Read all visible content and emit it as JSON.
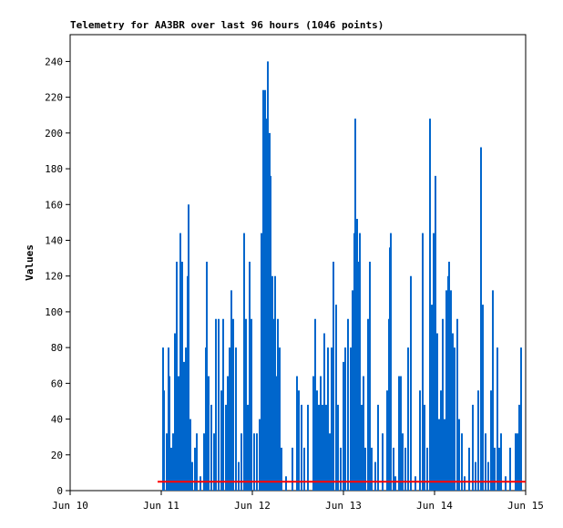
{
  "chart_data": {
    "type": "spike",
    "title": "Telemetry for AA3BR over last 96 hours (1046 points)",
    "y_label": "Values",
    "xlim": [
      0,
      5
    ],
    "xticks": [
      {
        "value": 0,
        "label": "Jun 10"
      },
      {
        "value": 1,
        "label": "Jun 11"
      },
      {
        "value": 2,
        "label": "Jun 12"
      },
      {
        "value": 3,
        "label": "Jun 13"
      },
      {
        "value": 4,
        "label": "Jun 14"
      },
      {
        "value": 5,
        "label": "Jun 15"
      }
    ],
    "ylim": [
      0,
      255
    ],
    "yticks": [
      0,
      20,
      40,
      60,
      80,
      100,
      120,
      140,
      160,
      180,
      200,
      220,
      240
    ],
    "series": [
      {
        "color": "#0066cc",
        "x": [
          1.02,
          1.03,
          1.06,
          1.08,
          1.09,
          1.11,
          1.13,
          1.15,
          1.17,
          1.19,
          1.21,
          1.23,
          1.25,
          1.27,
          1.29,
          1.3,
          1.32,
          1.34,
          1.37,
          1.39,
          1.43,
          1.47,
          1.49,
          1.5,
          1.52,
          1.55,
          1.58,
          1.6,
          1.63,
          1.66,
          1.68,
          1.71,
          1.73,
          1.75,
          1.77,
          1.79,
          1.82,
          1.85,
          1.88,
          1.91,
          1.93,
          1.95,
          1.97,
          1.99,
          2.02,
          2.05,
          2.08,
          2.1,
          2.12,
          2.13,
          2.14,
          2.16,
          2.17,
          2.19,
          2.2,
          2.22,
          2.23,
          2.25,
          2.26,
          2.28,
          2.3,
          2.32,
          2.37,
          2.44,
          2.49,
          2.51,
          2.54,
          2.57,
          2.61,
          2.67,
          2.69,
          2.71,
          2.73,
          2.75,
          2.77,
          2.79,
          2.81,
          2.83,
          2.85,
          2.87,
          2.89,
          2.92,
          2.94,
          2.97,
          3.0,
          3.02,
          3.05,
          3.08,
          3.1,
          3.12,
          3.13,
          3.15,
          3.17,
          3.18,
          3.2,
          3.22,
          3.24,
          3.27,
          3.29,
          3.31,
          3.35,
          3.38,
          3.43,
          3.48,
          3.5,
          3.51,
          3.52,
          3.55,
          3.57,
          3.61,
          3.63,
          3.65,
          3.68,
          3.71,
          3.74,
          3.79,
          3.84,
          3.87,
          3.89,
          3.92,
          3.95,
          3.97,
          3.99,
          4.01,
          4.03,
          4.05,
          4.07,
          4.09,
          4.11,
          4.13,
          4.15,
          4.16,
          4.18,
          4.2,
          4.22,
          4.25,
          4.27,
          4.3,
          4.33,
          4.38,
          4.42,
          4.45,
          4.48,
          4.51,
          4.53,
          4.56,
          4.59,
          4.62,
          4.64,
          4.66,
          4.69,
          4.71,
          4.73,
          4.78,
          4.83,
          4.89,
          4.91,
          4.93,
          4.95
        ],
        "values": [
          80,
          56,
          32,
          80,
          64,
          24,
          32,
          88,
          128,
          64,
          144,
          128,
          72,
          80,
          120,
          160,
          40,
          16,
          24,
          32,
          8,
          32,
          80,
          128,
          64,
          48,
          32,
          96,
          96,
          56,
          96,
          48,
          64,
          80,
          112,
          96,
          80,
          16,
          32,
          144,
          96,
          48,
          128,
          96,
          32,
          32,
          40,
          144,
          224,
          160,
          224,
          208,
          240,
          200,
          176,
          120,
          96,
          120,
          64,
          96,
          80,
          24,
          8,
          24,
          64,
          56,
          48,
          24,
          48,
          64,
          96,
          56,
          48,
          64,
          48,
          88,
          48,
          80,
          32,
          80,
          128,
          104,
          48,
          24,
          72,
          80,
          96,
          80,
          112,
          144,
          208,
          152,
          128,
          144,
          48,
          64,
          24,
          96,
          128,
          24,
          16,
          48,
          32,
          56,
          96,
          136,
          144,
          24,
          8,
          64,
          64,
          32,
          24,
          80,
          120,
          8,
          56,
          144,
          48,
          24,
          208,
          104,
          144,
          176,
          88,
          40,
          56,
          96,
          40,
          112,
          120,
          128,
          112,
          88,
          80,
          96,
          40,
          32,
          8,
          24,
          48,
          16,
          56,
          192,
          104,
          32,
          16,
          56,
          112,
          24,
          80,
          24,
          32,
          8,
          24,
          32,
          32,
          48,
          80
        ]
      },
      {
        "color": "#ff0000",
        "x": [
          0.96,
          5
        ],
        "values": [
          5,
          5
        ]
      }
    ]
  }
}
